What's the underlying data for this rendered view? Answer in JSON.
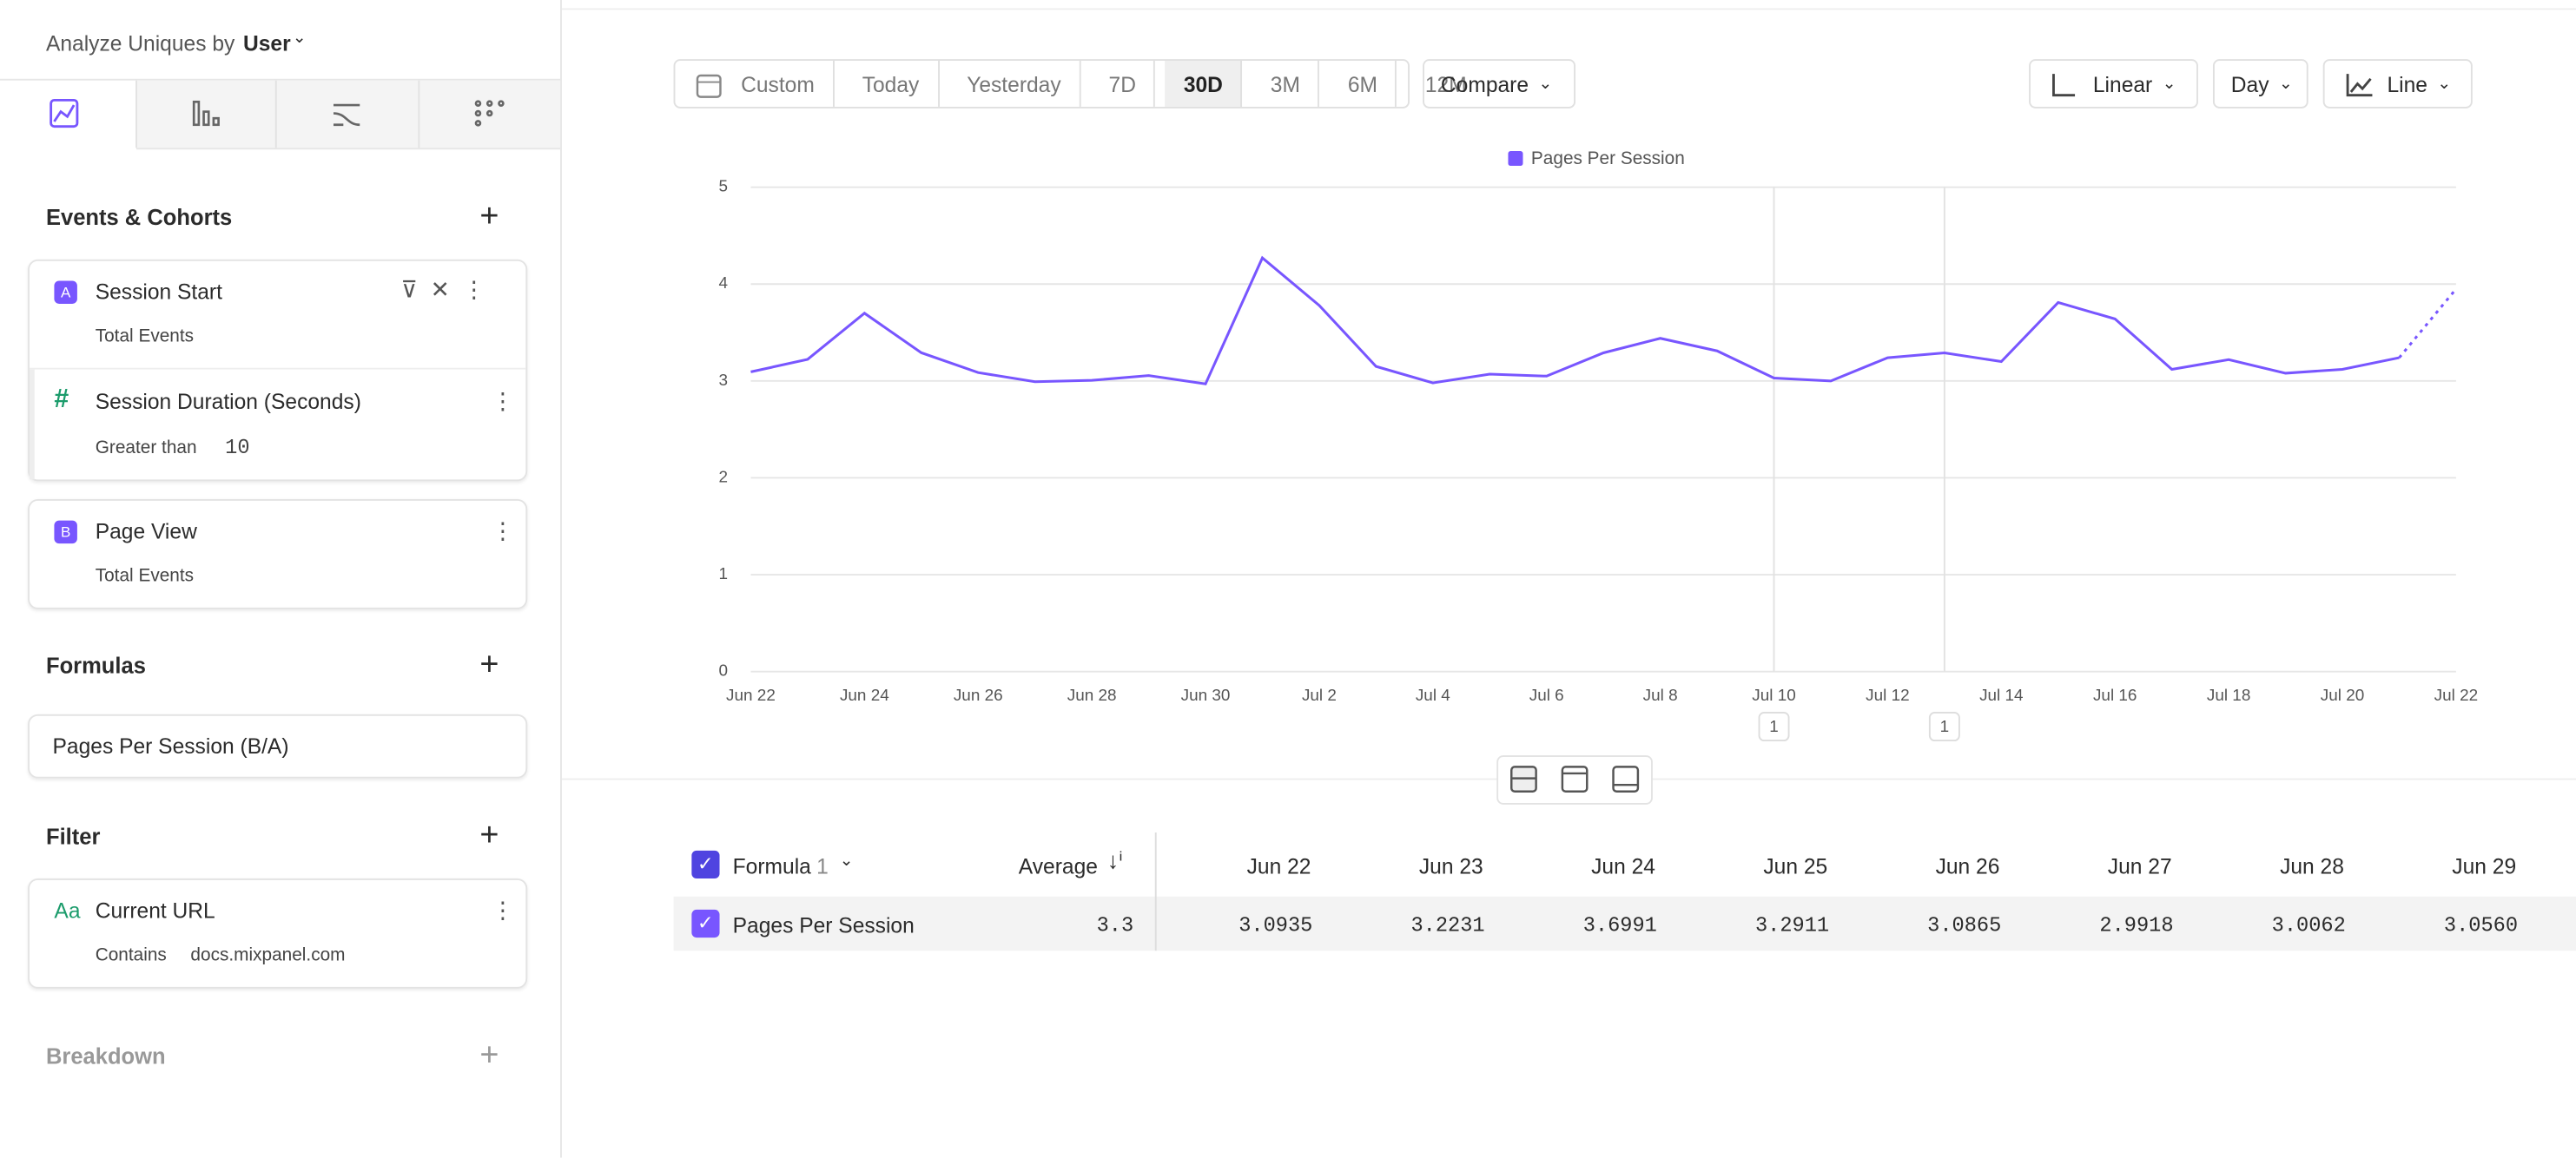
{
  "sidebar": {
    "analyze_label": "Analyze Uniques by",
    "analyze_value": "User",
    "events_title": "Events & Cohorts",
    "events": [
      {
        "letter": "A",
        "name": "Session Start",
        "sub": "Total Events"
      },
      {
        "letter": "B",
        "name": "Page View",
        "sub": "Total Events"
      }
    ],
    "property_filter": {
      "icon": "#",
      "name": "Session Duration (Seconds)",
      "operator": "Greater than",
      "value": "10"
    },
    "formulas_title": "Formulas",
    "formula": "Pages Per Session (B/A)",
    "filter_title": "Filter",
    "filter": {
      "icon": "Aa",
      "name": "Current URL",
      "operator": "Contains",
      "value": "docs.mixpanel.com"
    },
    "breakdown_title": "Breakdown"
  },
  "toolbar": {
    "ranges": [
      "Custom",
      "Today",
      "Yesterday",
      "7D",
      "30D",
      "3M",
      "6M",
      "12M"
    ],
    "active_range": 4,
    "compare": "Compare",
    "scale": "Linear",
    "interval": "Day",
    "chart_type": "Line"
  },
  "chart_data": {
    "type": "line",
    "categories": [
      "Jun 22",
      null,
      "Jun 24",
      null,
      "Jun 26",
      null,
      "Jun 28",
      null,
      "Jun 30",
      null,
      "Jul 2",
      null,
      "Jul 4",
      null,
      "Jul 6",
      null,
      "Jul 8",
      null,
      "Jul 10",
      null,
      "Jul 12",
      null,
      "Jul 14",
      null,
      "Jul 16",
      null,
      "Jul 18",
      null,
      "Jul 20",
      null,
      "Jul 22"
    ],
    "series": [
      {
        "name": "Pages Per Session",
        "color": "#7856ff",
        "values": [
          3.0935,
          3.2231,
          3.6991,
          3.2911,
          3.0865,
          2.9918,
          3.0062,
          3.056,
          2.97,
          4.27,
          3.78,
          3.15,
          2.98,
          3.07,
          3.05,
          3.29,
          3.44,
          3.31,
          3.03,
          3.0,
          3.24,
          3.29,
          3.2,
          3.81,
          3.64,
          3.12,
          3.22,
          3.08,
          3.12,
          3.24,
          3.95
        ]
      }
    ],
    "ylim": [
      0,
      5
    ],
    "yticks": [
      0,
      1,
      2,
      3,
      4,
      5
    ],
    "grid": true,
    "legend": "top",
    "dotted_last_segment": true,
    "annotations": [
      {
        "at": 18,
        "label": "1"
      },
      {
        "at": 21,
        "label": "1"
      }
    ]
  },
  "table": {
    "formula_label": "Formula",
    "formula_count": "1",
    "average_label": "Average",
    "columns": [
      "Jun 22",
      "Jun 23",
      "Jun 24",
      "Jun 25",
      "Jun 26",
      "Jun 27",
      "Jun 28",
      "Jun 29"
    ],
    "rows": [
      {
        "name": "Pages Per Session",
        "average": "3.3",
        "values": [
          "3.0935",
          "3.2231",
          "3.6991",
          "3.2911",
          "3.0865",
          "2.9918",
          "3.0062",
          "3.0560"
        ]
      }
    ]
  }
}
